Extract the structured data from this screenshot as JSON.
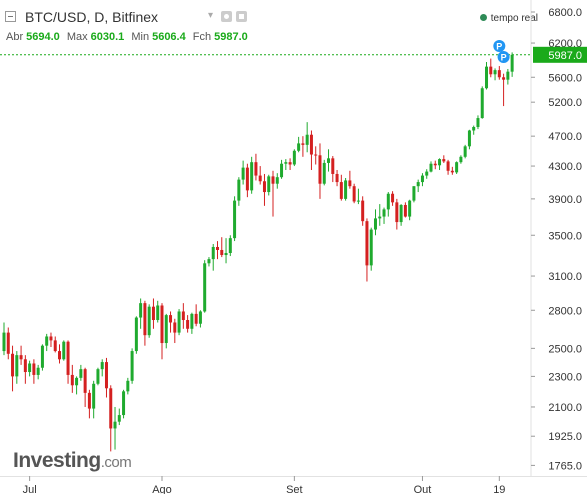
{
  "header": {
    "title": "BTC/USD, D, Bitfinex",
    "live_label": "tempo real",
    "ohlc": {
      "open_label": "Abr",
      "open": "5694.0",
      "high_label": "Max",
      "high": "6030.1",
      "low_label": "Min",
      "low": "5606.4",
      "close_label": "Fch",
      "close": "5987.0"
    }
  },
  "brand": {
    "name": "Investing",
    "suffix": ".com"
  },
  "colors": {
    "up": "#1faa2e",
    "down": "#d42020",
    "price_line": "#1aaa1a",
    "marker": "#2196f3"
  },
  "icons": [
    "collapse-icon",
    "settings-icon",
    "fullscreen-icon",
    "live-dot-icon"
  ],
  "chart_data": {
    "type": "candlestick",
    "title": "BTC/USD, D, Bitfinex",
    "scale": "log",
    "ylim": [
      1700,
      6800
    ],
    "y_ticks": [
      "6800.0",
      "6200.0",
      "5600.0",
      "5200.0",
      "4700.0",
      "4300.0",
      "3900.0",
      "3500.0",
      "3100.0",
      "2800.0",
      "2500.0",
      "2300.0",
      "2100.0",
      "1925.0",
      "1765.0"
    ],
    "x_ticks": [
      {
        "label": "Jul",
        "index": 6
      },
      {
        "label": "Ago",
        "index": 37
      },
      {
        "label": "Set",
        "index": 68
      },
      {
        "label": "Out",
        "index": 98
      },
      {
        "label": "19",
        "index": 116
      }
    ],
    "last_price": "5987.0",
    "markers": [
      {
        "label": "P",
        "index": 116
      },
      {
        "label": "P",
        "index": 117
      }
    ],
    "candles": [
      [
        2480,
        2700,
        2450,
        2620
      ],
      [
        2620,
        2660,
        2420,
        2460
      ],
      [
        2460,
        2520,
        2200,
        2300
      ],
      [
        2300,
        2480,
        2250,
        2450
      ],
      [
        2450,
        2520,
        2380,
        2420
      ],
      [
        2420,
        2450,
        2250,
        2330
      ],
      [
        2330,
        2410,
        2300,
        2390
      ],
      [
        2390,
        2420,
        2250,
        2310
      ],
      [
        2310,
        2380,
        2280,
        2360
      ],
      [
        2360,
        2530,
        2340,
        2520
      ],
      [
        2520,
        2610,
        2480,
        2590
      ],
      [
        2590,
        2620,
        2510,
        2560
      ],
      [
        2560,
        2590,
        2470,
        2480
      ],
      [
        2480,
        2530,
        2390,
        2420
      ],
      [
        2420,
        2560,
        2410,
        2550
      ],
      [
        2550,
        2560,
        2250,
        2310
      ],
      [
        2310,
        2380,
        2190,
        2240
      ],
      [
        2240,
        2300,
        2180,
        2290
      ],
      [
        2290,
        2380,
        2270,
        2350
      ],
      [
        2350,
        2360,
        2100,
        2190
      ],
      [
        2190,
        2210,
        2030,
        2090
      ],
      [
        2090,
        2270,
        2030,
        2250
      ],
      [
        2250,
        2360,
        2240,
        2350
      ],
      [
        2350,
        2420,
        2300,
        2400
      ],
      [
        2400,
        2430,
        2160,
        2220
      ],
      [
        2220,
        2240,
        1840,
        1970
      ],
      [
        1970,
        2100,
        1850,
        2010
      ],
      [
        2010,
        2090,
        1990,
        2050
      ],
      [
        2050,
        2210,
        2030,
        2200
      ],
      [
        2200,
        2290,
        2180,
        2270
      ],
      [
        2270,
        2500,
        2250,
        2480
      ],
      [
        2480,
        2750,
        2460,
        2740
      ],
      [
        2740,
        2900,
        2650,
        2860
      ],
      [
        2860,
        2880,
        2520,
        2600
      ],
      [
        2600,
        2850,
        2580,
        2830
      ],
      [
        2830,
        2900,
        2650,
        2720
      ],
      [
        2720,
        2880,
        2700,
        2840
      ],
      [
        2840,
        2860,
        2420,
        2540
      ],
      [
        2540,
        2770,
        2500,
        2760
      ],
      [
        2760,
        2790,
        2620,
        2700
      ],
      [
        2700,
        2730,
        2540,
        2620
      ],
      [
        2620,
        2810,
        2600,
        2790
      ],
      [
        2790,
        2860,
        2650,
        2720
      ],
      [
        2720,
        2760,
        2620,
        2650
      ],
      [
        2650,
        2780,
        2610,
        2770
      ],
      [
        2770,
        2850,
        2670,
        2690
      ],
      [
        2690,
        2800,
        2660,
        2790
      ],
      [
        2790,
        3250,
        2780,
        3220
      ],
      [
        3220,
        3280,
        3190,
        3260
      ],
      [
        3260,
        3410,
        3150,
        3380
      ],
      [
        3380,
        3440,
        3260,
        3350
      ],
      [
        3350,
        3480,
        3280,
        3300
      ],
      [
        3300,
        3470,
        3220,
        3320
      ],
      [
        3320,
        3500,
        3290,
        3470
      ],
      [
        3470,
        3930,
        3440,
        3880
      ],
      [
        3880,
        4160,
        3820,
        4130
      ],
      [
        4130,
        4370,
        4070,
        4280
      ],
      [
        4280,
        4330,
        3920,
        4000
      ],
      [
        4000,
        4420,
        3960,
        4350
      ],
      [
        4350,
        4460,
        4120,
        4180
      ],
      [
        4180,
        4300,
        4070,
        4110
      ],
      [
        4110,
        4200,
        3820,
        3980
      ],
      [
        3980,
        4190,
        3940,
        4170
      ],
      [
        4170,
        4240,
        3700,
        4080
      ],
      [
        4080,
        4210,
        4020,
        4160
      ],
      [
        4160,
        4380,
        4140,
        4330
      ],
      [
        4330,
        4390,
        4250,
        4350
      ],
      [
        4350,
        4400,
        4250,
        4320
      ],
      [
        4320,
        4520,
        4300,
        4500
      ],
      [
        4500,
        4690,
        4480,
        4600
      ],
      [
        4600,
        4700,
        4420,
        4580
      ],
      [
        4580,
        4900,
        4480,
        4720
      ],
      [
        4720,
        4780,
        4250,
        4450
      ],
      [
        4450,
        4560,
        4320,
        4440
      ],
      [
        4440,
        4600,
        3900,
        4080
      ],
      [
        4080,
        4380,
        4060,
        4340
      ],
      [
        4340,
        4520,
        4230,
        4400
      ],
      [
        4400,
        4430,
        4100,
        4200
      ],
      [
        4200,
        4250,
        4050,
        4100
      ],
      [
        4100,
        4190,
        3880,
        3900
      ],
      [
        3900,
        4150,
        3880,
        4120
      ],
      [
        4120,
        4240,
        4020,
        4050
      ],
      [
        4050,
        4080,
        3850,
        3870
      ],
      [
        3870,
        4020,
        3840,
        3880
      ],
      [
        3880,
        3930,
        3600,
        3650
      ],
      [
        3650,
        3680,
        3050,
        3200
      ],
      [
        3200,
        3580,
        3150,
        3560
      ],
      [
        3560,
        3780,
        3500,
        3680
      ],
      [
        3680,
        3840,
        3600,
        3700
      ],
      [
        3700,
        3800,
        3620,
        3780
      ],
      [
        3780,
        3980,
        3700,
        3960
      ],
      [
        3960,
        3990,
        3820,
        3860
      ],
      [
        3860,
        3900,
        3560,
        3640
      ],
      [
        3640,
        3840,
        3600,
        3830
      ],
      [
        3830,
        3860,
        3690,
        3700
      ],
      [
        3700,
        3890,
        3660,
        3880
      ],
      [
        3880,
        4050,
        3860,
        4050
      ],
      [
        4050,
        4130,
        3980,
        4100
      ],
      [
        4100,
        4210,
        4050,
        4180
      ],
      [
        4180,
        4260,
        4140,
        4230
      ],
      [
        4230,
        4360,
        4220,
        4330
      ],
      [
        4330,
        4370,
        4260,
        4310
      ],
      [
        4310,
        4400,
        4250,
        4390
      ],
      [
        4390,
        4440,
        4340,
        4360
      ],
      [
        4360,
        4380,
        4190,
        4240
      ],
      [
        4240,
        4290,
        4190,
        4220
      ],
      [
        4220,
        4360,
        4200,
        4350
      ],
      [
        4350,
        4440,
        4330,
        4420
      ],
      [
        4420,
        4580,
        4400,
        4560
      ],
      [
        4560,
        4790,
        4520,
        4780
      ],
      [
        4780,
        4850,
        4720,
        4830
      ],
      [
        4830,
        5000,
        4800,
        4960
      ],
      [
        4960,
        5450,
        4950,
        5420
      ],
      [
        5420,
        5860,
        5400,
        5780
      ],
      [
        5780,
        5920,
        5600,
        5650
      ],
      [
        5650,
        5750,
        5550,
        5720
      ],
      [
        5720,
        5790,
        5560,
        5600
      ],
      [
        5600,
        5660,
        5140,
        5560
      ],
      [
        5560,
        5740,
        5480,
        5694
      ],
      [
        5694,
        6030.1,
        5606.4,
        5987
      ]
    ]
  }
}
